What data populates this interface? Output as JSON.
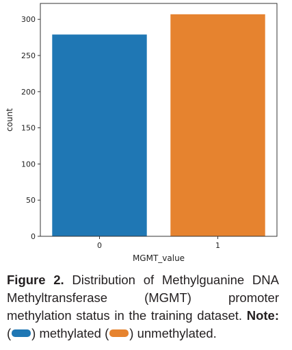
{
  "chart_data": {
    "type": "bar",
    "categories": [
      "0",
      "1"
    ],
    "values": [
      279,
      307
    ],
    "colors": [
      "#1f77b4",
      "#e6832f"
    ],
    "xlabel": "MGMT_value",
    "ylabel": "count",
    "ylim": [
      0,
      322
    ],
    "yticks": [
      0,
      50,
      100,
      150,
      200,
      250,
      300
    ],
    "grid": false,
    "legend": "none"
  },
  "caption": {
    "figure_label": "Figure 2.",
    "figure_text": " Distribution of Methylguanine DNA Methyltransferase (MGMT) promoter methylation status in the training dataset.",
    "note_label": "Note:",
    "open_paren_1": " (",
    "methylated_text": ") methylated ",
    "open_paren_2": " (",
    "unmethylated_text": ") unmethylated."
  }
}
